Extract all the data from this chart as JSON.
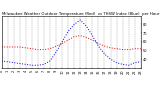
{
  "hours": [
    0,
    1,
    2,
    3,
    4,
    5,
    6,
    7,
    8,
    9,
    10,
    11,
    12,
    13,
    14,
    15,
    16,
    17,
    18,
    19,
    20,
    21,
    22,
    23
  ],
  "temp_red": [
    54,
    54,
    54,
    54,
    53,
    52,
    51,
    51,
    52,
    55,
    58,
    62,
    66,
    67,
    65,
    62,
    58,
    55,
    53,
    52,
    51,
    51,
    52,
    52
  ],
  "thsw_blue": [
    38,
    37,
    36,
    35,
    34,
    33,
    33,
    34,
    38,
    48,
    60,
    72,
    80,
    85,
    78,
    67,
    55,
    46,
    40,
    36,
    34,
    33,
    36,
    37
  ],
  "title": "Milwaukee Weather Outdoor Temperature (Red)  vs THSW Index (Blue)  per Hour  (24 Hours)",
  "xlim": [
    0,
    23
  ],
  "ylim": [
    30,
    90
  ],
  "yticks": [
    40,
    50,
    60,
    70,
    80
  ],
  "ytick_labels": [
    "40",
    "50",
    "60",
    "70",
    "80"
  ],
  "xticks": [
    0,
    1,
    2,
    3,
    4,
    5,
    6,
    7,
    8,
    9,
    10,
    11,
    12,
    13,
    14,
    15,
    16,
    17,
    18,
    19,
    20,
    21,
    22,
    23
  ],
  "red_color": "#dd0000",
  "blue_color": "#0000cc",
  "bg_color": "#ffffff",
  "grid_color": "#999999",
  "title_fontsize": 2.8,
  "tick_fontsize": 2.5,
  "line_width": 0.7
}
